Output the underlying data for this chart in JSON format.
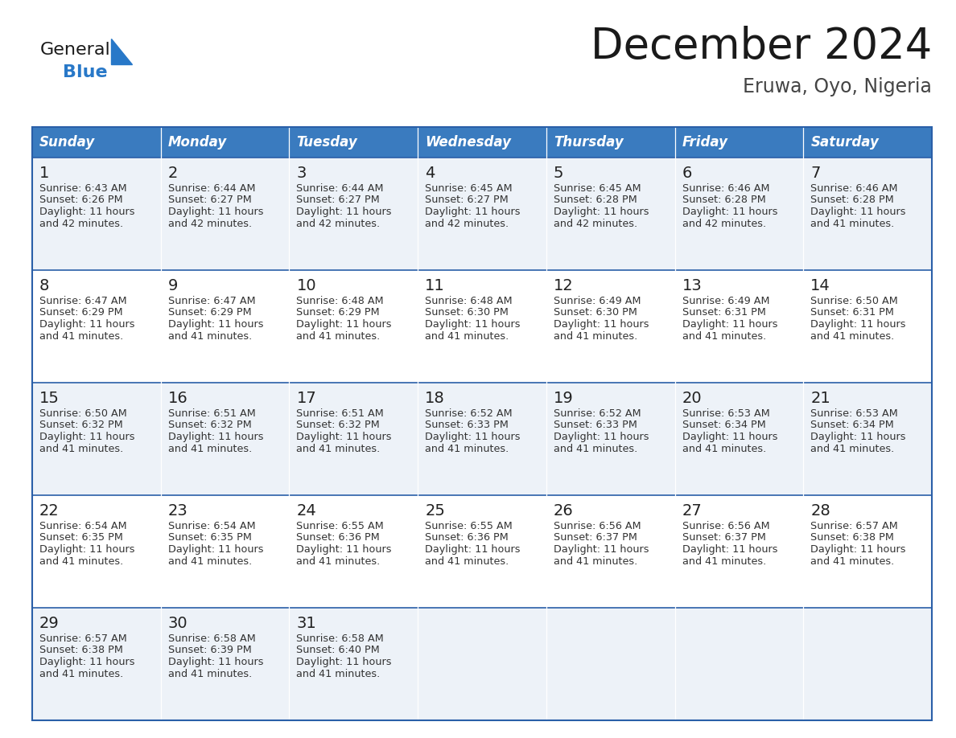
{
  "title": "December 2024",
  "subtitle": "Eruwa, Oyo, Nigeria",
  "header_bg_color": "#3a7bbf",
  "header_text_color": "#ffffff",
  "row_bg_colors": [
    "#edf2f8",
    "#ffffff",
    "#edf2f8",
    "#ffffff",
    "#edf2f8"
  ],
  "border_color": "#2a5fa8",
  "day_headers": [
    "Sunday",
    "Monday",
    "Tuesday",
    "Wednesday",
    "Thursday",
    "Friday",
    "Saturday"
  ],
  "days": [
    {
      "day": 1,
      "col": 0,
      "row": 0,
      "sunrise": "6:43 AM",
      "sunset": "6:26 PM",
      "daylight": "11 hours\nand 42 minutes."
    },
    {
      "day": 2,
      "col": 1,
      "row": 0,
      "sunrise": "6:44 AM",
      "sunset": "6:27 PM",
      "daylight": "11 hours\nand 42 minutes."
    },
    {
      "day": 3,
      "col": 2,
      "row": 0,
      "sunrise": "6:44 AM",
      "sunset": "6:27 PM",
      "daylight": "11 hours\nand 42 minutes."
    },
    {
      "day": 4,
      "col": 3,
      "row": 0,
      "sunrise": "6:45 AM",
      "sunset": "6:27 PM",
      "daylight": "11 hours\nand 42 minutes."
    },
    {
      "day": 5,
      "col": 4,
      "row": 0,
      "sunrise": "6:45 AM",
      "sunset": "6:28 PM",
      "daylight": "11 hours\nand 42 minutes."
    },
    {
      "day": 6,
      "col": 5,
      "row": 0,
      "sunrise": "6:46 AM",
      "sunset": "6:28 PM",
      "daylight": "11 hours\nand 42 minutes."
    },
    {
      "day": 7,
      "col": 6,
      "row": 0,
      "sunrise": "6:46 AM",
      "sunset": "6:28 PM",
      "daylight": "11 hours\nand 41 minutes."
    },
    {
      "day": 8,
      "col": 0,
      "row": 1,
      "sunrise": "6:47 AM",
      "sunset": "6:29 PM",
      "daylight": "11 hours\nand 41 minutes."
    },
    {
      "day": 9,
      "col": 1,
      "row": 1,
      "sunrise": "6:47 AM",
      "sunset": "6:29 PM",
      "daylight": "11 hours\nand 41 minutes."
    },
    {
      "day": 10,
      "col": 2,
      "row": 1,
      "sunrise": "6:48 AM",
      "sunset": "6:29 PM",
      "daylight": "11 hours\nand 41 minutes."
    },
    {
      "day": 11,
      "col": 3,
      "row": 1,
      "sunrise": "6:48 AM",
      "sunset": "6:30 PM",
      "daylight": "11 hours\nand 41 minutes."
    },
    {
      "day": 12,
      "col": 4,
      "row": 1,
      "sunrise": "6:49 AM",
      "sunset": "6:30 PM",
      "daylight": "11 hours\nand 41 minutes."
    },
    {
      "day": 13,
      "col": 5,
      "row": 1,
      "sunrise": "6:49 AM",
      "sunset": "6:31 PM",
      "daylight": "11 hours\nand 41 minutes."
    },
    {
      "day": 14,
      "col": 6,
      "row": 1,
      "sunrise": "6:50 AM",
      "sunset": "6:31 PM",
      "daylight": "11 hours\nand 41 minutes."
    },
    {
      "day": 15,
      "col": 0,
      "row": 2,
      "sunrise": "6:50 AM",
      "sunset": "6:32 PM",
      "daylight": "11 hours\nand 41 minutes."
    },
    {
      "day": 16,
      "col": 1,
      "row": 2,
      "sunrise": "6:51 AM",
      "sunset": "6:32 PM",
      "daylight": "11 hours\nand 41 minutes."
    },
    {
      "day": 17,
      "col": 2,
      "row": 2,
      "sunrise": "6:51 AM",
      "sunset": "6:32 PM",
      "daylight": "11 hours\nand 41 minutes."
    },
    {
      "day": 18,
      "col": 3,
      "row": 2,
      "sunrise": "6:52 AM",
      "sunset": "6:33 PM",
      "daylight": "11 hours\nand 41 minutes."
    },
    {
      "day": 19,
      "col": 4,
      "row": 2,
      "sunrise": "6:52 AM",
      "sunset": "6:33 PM",
      "daylight": "11 hours\nand 41 minutes."
    },
    {
      "day": 20,
      "col": 5,
      "row": 2,
      "sunrise": "6:53 AM",
      "sunset": "6:34 PM",
      "daylight": "11 hours\nand 41 minutes."
    },
    {
      "day": 21,
      "col": 6,
      "row": 2,
      "sunrise": "6:53 AM",
      "sunset": "6:34 PM",
      "daylight": "11 hours\nand 41 minutes."
    },
    {
      "day": 22,
      "col": 0,
      "row": 3,
      "sunrise": "6:54 AM",
      "sunset": "6:35 PM",
      "daylight": "11 hours\nand 41 minutes."
    },
    {
      "day": 23,
      "col": 1,
      "row": 3,
      "sunrise": "6:54 AM",
      "sunset": "6:35 PM",
      "daylight": "11 hours\nand 41 minutes."
    },
    {
      "day": 24,
      "col": 2,
      "row": 3,
      "sunrise": "6:55 AM",
      "sunset": "6:36 PM",
      "daylight": "11 hours\nand 41 minutes."
    },
    {
      "day": 25,
      "col": 3,
      "row": 3,
      "sunrise": "6:55 AM",
      "sunset": "6:36 PM",
      "daylight": "11 hours\nand 41 minutes."
    },
    {
      "day": 26,
      "col": 4,
      "row": 3,
      "sunrise": "6:56 AM",
      "sunset": "6:37 PM",
      "daylight": "11 hours\nand 41 minutes."
    },
    {
      "day": 27,
      "col": 5,
      "row": 3,
      "sunrise": "6:56 AM",
      "sunset": "6:37 PM",
      "daylight": "11 hours\nand 41 minutes."
    },
    {
      "day": 28,
      "col": 6,
      "row": 3,
      "sunrise": "6:57 AM",
      "sunset": "6:38 PM",
      "daylight": "11 hours\nand 41 minutes."
    },
    {
      "day": 29,
      "col": 0,
      "row": 4,
      "sunrise": "6:57 AM",
      "sunset": "6:38 PM",
      "daylight": "11 hours\nand 41 minutes."
    },
    {
      "day": 30,
      "col": 1,
      "row": 4,
      "sunrise": "6:58 AM",
      "sunset": "6:39 PM",
      "daylight": "11 hours\nand 41 minutes."
    },
    {
      "day": 31,
      "col": 2,
      "row": 4,
      "sunrise": "6:58 AM",
      "sunset": "6:40 PM",
      "daylight": "11 hours\nand 41 minutes."
    }
  ],
  "logo_color_general": "#1a1a1a",
  "logo_color_blue": "#2878c8",
  "title_color": "#1a1a1a",
  "subtitle_color": "#444444",
  "fig_width": 11.88,
  "fig_height": 9.18,
  "dpi": 100
}
